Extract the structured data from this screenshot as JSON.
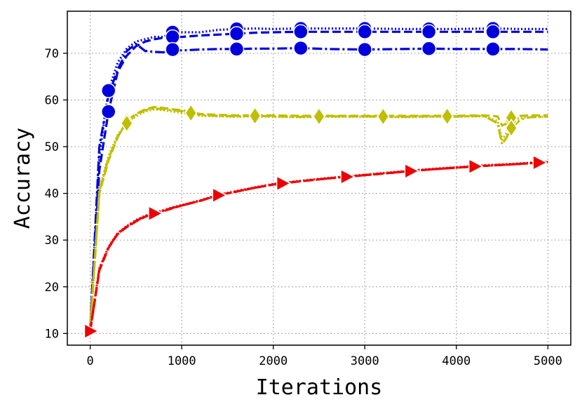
{
  "chart_data": {
    "type": "line",
    "xlabel": "Iterations",
    "ylabel": "Accuracy",
    "xlim": [
      -250,
      5250
    ],
    "ylim": [
      7.5,
      79
    ],
    "xticks": [
      0,
      1000,
      2000,
      3000,
      4000,
      5000
    ],
    "yticks": [
      10,
      20,
      30,
      40,
      50,
      60,
      70
    ],
    "grid": true,
    "colors": {
      "blue": "#0000dd",
      "olive": "#bfbf00",
      "red": "#ee0000"
    },
    "series": [
      {
        "color": "#0000dd",
        "dash": "2 3",
        "marker": "circle",
        "x": [
          0,
          100,
          200,
          300,
          400,
          500,
          600,
          700,
          800,
          900,
          1000,
          1200,
          1400,
          1600,
          1800,
          2000,
          2300,
          2600,
          3000,
          3400,
          3700,
          4000,
          4400,
          4700,
          5000
        ],
        "y": [
          11,
          48,
          62,
          68,
          71,
          72.5,
          73,
          73.5,
          73.5,
          74.5,
          74.5,
          74.5,
          75,
          75.2,
          75.3,
          75.2,
          75.3,
          75.3,
          75.3,
          75.2,
          75.2,
          75.2,
          75.3,
          75.2,
          75.2
        ],
        "markers_x": [
          200,
          900,
          1600,
          2300,
          3000,
          3700,
          4400
        ]
      },
      {
        "color": "#0000dd",
        "dash": "12 5",
        "marker": "circle",
        "x": [
          0,
          100,
          200,
          300,
          400,
          500,
          600,
          700,
          800,
          900,
          1000,
          1200,
          1400,
          1600,
          1800,
          2000,
          2300,
          2600,
          3000,
          3400,
          3700,
          4000,
          4400,
          4700,
          5000
        ],
        "y": [
          11,
          45,
          57.5,
          66,
          69.5,
          71.5,
          72.5,
          73,
          73.3,
          73.5,
          73.5,
          73.8,
          74,
          74.2,
          74.4,
          74.5,
          74.6,
          74.6,
          74.6,
          74.6,
          74.6,
          74.6,
          74.6,
          74.6,
          74.6
        ],
        "markers_x": [
          200,
          900,
          1600,
          2300,
          3000,
          3700,
          4400
        ]
      },
      {
        "color": "#0000dd",
        "dash": "14 4 3 4",
        "marker": "circle",
        "x": [
          0,
          100,
          200,
          300,
          400,
          500,
          600,
          700,
          800,
          900,
          1000,
          1200,
          1400,
          1600,
          1800,
          2000,
          2300,
          2600,
          3000,
          3400,
          3700,
          4000,
          4400,
          4700,
          5000
        ],
        "y": [
          11,
          50,
          61,
          66.5,
          70.5,
          72,
          70.5,
          70.3,
          70.2,
          70.8,
          70.6,
          70.8,
          70.9,
          70.9,
          71,
          71,
          71.1,
          70.9,
          70.8,
          70.9,
          71,
          70.9,
          70.9,
          70.9,
          70.8
        ],
        "markers_x": [
          900,
          1600,
          2300,
          3000,
          3700,
          4400
        ]
      },
      {
        "color": "#bfbf00",
        "dash": "2 3",
        "marker": "diamond",
        "x": [
          0,
          100,
          200,
          300,
          400,
          500,
          600,
          700,
          800,
          900,
          1000,
          1200,
          1400,
          1600,
          1800,
          2000,
          2300,
          2600,
          3000,
          3400,
          3700,
          4000,
          4300,
          4450,
          4500,
          4550,
          4600,
          4700,
          4800,
          5000
        ],
        "y": [
          11,
          41,
          48,
          52.5,
          55,
          56.5,
          57.5,
          58,
          57.8,
          57.5,
          57.2,
          56.6,
          56.5,
          56.4,
          56.5,
          56.4,
          56.3,
          56.4,
          56.4,
          56.3,
          56.4,
          56.4,
          56.5,
          55.5,
          51.5,
          53,
          55.5,
          56.2,
          56.3,
          56.4
        ],
        "markers_x": [
          400,
          1100,
          1800,
          2500,
          3200,
          3900,
          4600
        ]
      },
      {
        "color": "#bfbf00",
        "dash": "12 5",
        "marker": "diamond",
        "x": [
          0,
          100,
          200,
          300,
          400,
          500,
          600,
          700,
          800,
          900,
          1000,
          1200,
          1400,
          1600,
          1800,
          2000,
          2300,
          2600,
          3000,
          3400,
          3700,
          4000,
          4300,
          4450,
          4500,
          4550,
          4600,
          4700,
          4800,
          5000
        ],
        "y": [
          11,
          40,
          47,
          52,
          55.5,
          57,
          58,
          58.5,
          58.3,
          58,
          57.8,
          57,
          56.8,
          56.7,
          56.7,
          56.7,
          56.6,
          56.6,
          56.6,
          56.6,
          56.6,
          56.6,
          56.7,
          56.5,
          54.5,
          55,
          56.2,
          56.6,
          56.7,
          56.7
        ],
        "markers_x": [
          400,
          1100,
          1800,
          2500,
          3200,
          3900,
          4600
        ]
      },
      {
        "color": "#bfbf00",
        "dash": "14 4 3 4",
        "marker": "diamond",
        "x": [
          0,
          100,
          200,
          300,
          400,
          500,
          600,
          700,
          800,
          900,
          1000,
          1200,
          1400,
          1600,
          1800,
          2000,
          2300,
          2600,
          3000,
          3400,
          3700,
          4000,
          4300,
          4450,
          4500,
          4550,
          4600,
          4700,
          4800,
          5000
        ],
        "y": [
          11,
          40.5,
          47.5,
          52.2,
          55,
          56.8,
          57.8,
          58.2,
          58,
          57.8,
          57.6,
          56.8,
          56.6,
          56.5,
          56.6,
          56.5,
          56.4,
          56.5,
          56.5,
          56.4,
          56.5,
          56.5,
          56.6,
          55,
          50.5,
          52,
          54,
          55.8,
          56.3,
          56.5
        ],
        "markers_x": [
          400,
          1100,
          1800,
          2500,
          3200,
          3900,
          4600
        ]
      },
      {
        "color": "#ee0000",
        "dash": "2 3",
        "marker": "triangle-right",
        "x": [
          0,
          100,
          200,
          300,
          400,
          500,
          600,
          700,
          800,
          900,
          1000,
          1200,
          1400,
          1600,
          1800,
          2000,
          2300,
          2600,
          3000,
          3400,
          3700,
          4000,
          4300,
          4600,
          5000
        ],
        "y": [
          10.5,
          24,
          28.5,
          31.5,
          33,
          34.3,
          35.2,
          35.8,
          36.4,
          37,
          37.5,
          38.5,
          39.7,
          40.5,
          41.3,
          42,
          42.7,
          43.3,
          44,
          44.7,
          45.2,
          45.6,
          46,
          46.3,
          46.8
        ],
        "markers_x": [
          0,
          700,
          1400,
          2100,
          2800,
          3500,
          4200,
          4900
        ]
      },
      {
        "color": "#ee0000",
        "dash": "12 5",
        "marker": "triangle-right",
        "x": [
          0,
          100,
          200,
          300,
          400,
          500,
          600,
          700,
          800,
          900,
          1000,
          1200,
          1400,
          1600,
          1800,
          2000,
          2300,
          2600,
          3000,
          3400,
          3700,
          4000,
          4300,
          4600,
          5000
        ],
        "y": [
          10.5,
          23.5,
          28.3,
          31.3,
          32.8,
          34,
          35,
          35.6,
          36.2,
          36.8,
          37.4,
          38.4,
          39.6,
          40.4,
          41.2,
          41.9,
          42.6,
          43.2,
          43.9,
          44.6,
          45.1,
          45.5,
          45.9,
          46.2,
          46.7
        ],
        "markers_x": [
          0,
          700,
          1400,
          2100,
          2800,
          3500,
          4200,
          4900
        ]
      },
      {
        "color": "#ee0000",
        "dash": "14 4 3 4",
        "marker": "triangle-right",
        "x": [
          0,
          100,
          200,
          300,
          400,
          500,
          600,
          700,
          800,
          900,
          1000,
          1200,
          1400,
          1600,
          1800,
          2000,
          2300,
          2600,
          3000,
          3400,
          3700,
          4000,
          4300,
          4600,
          5000
        ],
        "y": [
          10.5,
          23.8,
          28.4,
          31.4,
          32.9,
          34.1,
          35.1,
          35.7,
          36.3,
          36.9,
          37.4,
          38.4,
          39.6,
          40.4,
          41.2,
          41.9,
          42.6,
          43.2,
          43.9,
          44.6,
          45.1,
          45.5,
          45.9,
          46.2,
          46.7
        ],
        "markers_x": [
          0,
          700,
          1400,
          2100,
          2800,
          3500,
          4200,
          4900
        ]
      }
    ]
  }
}
